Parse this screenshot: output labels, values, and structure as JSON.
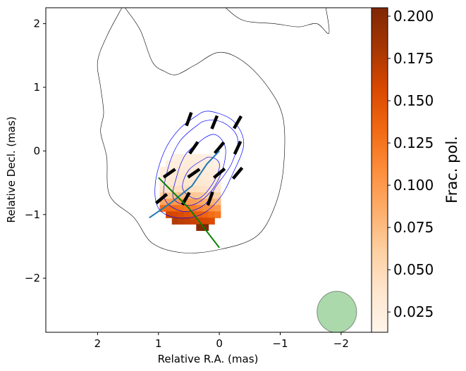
{
  "chart_data": {
    "type": "heatmap",
    "xlabel": "Relative R.A. (mas)",
    "ylabel": "Relative Decl. (mas)",
    "xlim": [
      2.85,
      -2.5
    ],
    "ylim": [
      -2.85,
      2.25
    ],
    "x_reversed": true,
    "x_ticks": [
      2,
      1,
      0,
      -1,
      -2
    ],
    "x_tick_labels": [
      "2",
      "1",
      "0",
      "−1",
      "−2"
    ],
    "y_ticks": [
      -2,
      -1,
      0,
      1,
      2
    ],
    "y_tick_labels": [
      "−2",
      "−1",
      "0",
      "1",
      "2"
    ],
    "grid": false,
    "colorbar": {
      "label": "Frac. pol.",
      "colormap": "Oranges",
      "range": [
        0.013,
        0.205
      ],
      "ticks": [
        0.025,
        0.05,
        0.075,
        0.1,
        0.125,
        0.15,
        0.175,
        0.2
      ],
      "tick_labels": [
        "0.025",
        "0.050",
        "0.075",
        "0.100",
        "0.125",
        "0.150",
        "0.175",
        "0.200"
      ]
    },
    "pixel_size_mas": 0.1,
    "frac_pol_rows": [
      {
        "y": -0.1,
        "x_start": 0.78,
        "values": [
          0.02,
          0.022,
          0.024,
          0.025,
          0.024,
          0.022,
          0.02
        ]
      },
      {
        "y": -0.2,
        "x_start": 0.88,
        "values": [
          0.022,
          0.024,
          0.026,
          0.027,
          0.027,
          0.026,
          0.024,
          0.022,
          0.02
        ]
      },
      {
        "y": -0.3,
        "x_start": 0.98,
        "values": [
          0.024,
          0.026,
          0.028,
          0.03,
          0.03,
          0.029,
          0.028,
          0.026,
          0.024,
          0.022
        ]
      },
      {
        "y": -0.4,
        "x_start": 0.98,
        "values": [
          0.026,
          0.028,
          0.03,
          0.032,
          0.032,
          0.031,
          0.03,
          0.028,
          0.026,
          0.024
        ]
      },
      {
        "y": -0.5,
        "x_start": 0.98,
        "values": [
          0.03,
          0.032,
          0.034,
          0.036,
          0.036,
          0.035,
          0.034,
          0.032,
          0.03,
          0.028
        ]
      },
      {
        "y": -0.6,
        "x_start": 0.98,
        "values": [
          0.04,
          0.042,
          0.044,
          0.045,
          0.045,
          0.044,
          0.043,
          0.04,
          0.038,
          0.035
        ]
      },
      {
        "y": -0.7,
        "x_start": 0.98,
        "values": [
          0.06,
          0.065,
          0.07,
          0.072,
          0.07,
          0.068,
          0.065,
          0.06,
          0.058,
          0.055
        ]
      },
      {
        "y": -0.8,
        "x_start": 0.98,
        "values": [
          0.09,
          0.095,
          0.1,
          0.1,
          0.098,
          0.095,
          0.09,
          0.085,
          0.08,
          0.075
        ]
      },
      {
        "y": -0.9,
        "x_start": 0.98,
        "values": [
          0.13,
          0.132,
          0.13,
          0.128,
          0.125,
          0.12,
          0.115,
          0.11,
          0.105,
          0.1
        ]
      },
      {
        "y": -1.0,
        "x_start": 0.88,
        "values": [
          0.16,
          0.158,
          0.155,
          0.15,
          0.145,
          0.14,
          0.135,
          0.13,
          0.125
        ]
      },
      {
        "y": -1.1,
        "x_start": 0.78,
        "values": [
          0.175,
          0.17,
          0.168,
          0.165,
          0.16,
          0.158,
          0.155
        ]
      },
      {
        "y": -1.2,
        "x_start": 0.38,
        "values": [
          0.2,
          0.205
        ]
      }
    ],
    "contours": [
      {
        "name": "outer",
        "color": "#000000",
        "points": [
          [
            1.55,
            2.25
          ],
          [
            1.3,
            1.9
          ],
          [
            1.1,
            1.4
          ],
          [
            0.9,
            1.25
          ],
          [
            0.7,
            1.2
          ],
          [
            0.4,
            1.35
          ],
          [
            0.0,
            1.55
          ],
          [
            -0.4,
            1.4
          ],
          [
            -0.8,
            1.0
          ],
          [
            -1.05,
            0.5
          ],
          [
            -1.05,
            -0.3
          ],
          [
            -0.9,
            -0.9
          ],
          [
            -0.6,
            -1.35
          ],
          [
            0.0,
            -1.55
          ],
          [
            0.6,
            -1.6
          ],
          [
            1.1,
            -1.45
          ],
          [
            1.4,
            -1.05
          ],
          [
            1.8,
            -0.7
          ],
          [
            1.85,
            -0.1
          ],
          [
            1.95,
            0.3
          ],
          [
            1.9,
            0.6
          ],
          [
            1.95,
            1.0
          ],
          [
            2.0,
            1.4
          ],
          [
            1.85,
            1.8
          ],
          [
            1.6,
            2.25
          ]
        ]
      },
      {
        "name": "outer-right",
        "color": "#000000",
        "points": [
          [
            -0.1,
            2.25
          ],
          [
            -0.4,
            2.05
          ],
          [
            -0.9,
            2.0
          ],
          [
            -1.3,
            1.95
          ],
          [
            -1.6,
            2.0
          ],
          [
            -1.8,
            1.85
          ],
          [
            -1.75,
            2.25
          ]
        ]
      },
      {
        "name": "inner-1",
        "color": "#0000ff",
        "points": [
          [
            0.3,
            0.6
          ],
          [
            0.65,
            0.35
          ],
          [
            0.9,
            0.0
          ],
          [
            1.05,
            -0.5
          ],
          [
            1.0,
            -0.9
          ],
          [
            0.7,
            -1.05
          ],
          [
            0.3,
            -1.0
          ],
          [
            0.0,
            -0.75
          ],
          [
            -0.2,
            -0.4
          ],
          [
            -0.4,
            0.1
          ],
          [
            -0.25,
            0.45
          ],
          [
            0.05,
            0.6
          ]
        ]
      },
      {
        "name": "inner-2",
        "color": "#0000ff",
        "points": [
          [
            0.3,
            0.45
          ],
          [
            0.65,
            0.15
          ],
          [
            0.85,
            -0.3
          ],
          [
            0.9,
            -0.75
          ],
          [
            0.6,
            -0.95
          ],
          [
            0.25,
            -0.85
          ],
          [
            0.05,
            -0.55
          ],
          [
            -0.2,
            -0.2
          ],
          [
            -0.3,
            0.2
          ],
          [
            -0.05,
            0.45
          ]
        ]
      },
      {
        "name": "inner-3",
        "color": "#0000ff",
        "points": [
          [
            0.25,
            0.2
          ],
          [
            0.55,
            -0.05
          ],
          [
            0.7,
            -0.4
          ],
          [
            0.75,
            -0.75
          ],
          [
            0.45,
            -0.85
          ],
          [
            0.15,
            -0.65
          ],
          [
            -0.05,
            -0.3
          ],
          [
            -0.1,
            0.05
          ],
          [
            0.05,
            0.25
          ]
        ]
      },
      {
        "name": "inner-4",
        "color": "#0000ff",
        "points": [
          [
            0.2,
            -0.1
          ],
          [
            0.5,
            -0.3
          ],
          [
            0.6,
            -0.6
          ],
          [
            0.35,
            -0.75
          ],
          [
            0.1,
            -0.5
          ],
          [
            0.0,
            -0.2
          ]
        ]
      }
    ],
    "evpa_sticks": [
      {
        "x": 0.5,
        "y": 0.5,
        "angle": 70
      },
      {
        "x": 0.08,
        "y": 0.45,
        "angle": 68
      },
      {
        "x": -0.3,
        "y": 0.45,
        "angle": 60
      },
      {
        "x": 0.42,
        "y": 0.05,
        "angle": 55
      },
      {
        "x": 0.0,
        "y": 0.05,
        "angle": 50
      },
      {
        "x": -0.3,
        "y": 0.05,
        "angle": 65
      },
      {
        "x": 0.82,
        "y": -0.35,
        "angle": 35
      },
      {
        "x": 0.42,
        "y": -0.35,
        "angle": 35
      },
      {
        "x": 0.0,
        "y": -0.35,
        "angle": 40
      },
      {
        "x": -0.3,
        "y": -0.35,
        "angle": 50
      },
      {
        "x": 0.95,
        "y": -0.75,
        "angle": 40
      },
      {
        "x": 0.55,
        "y": -0.75,
        "angle": 60
      },
      {
        "x": 0.15,
        "y": -0.75,
        "angle": 70
      }
    ],
    "lines": [
      {
        "name": "jet-axis",
        "color": "#1f77b4",
        "points": [
          [
            1.15,
            -1.05
          ],
          [
            0.8,
            -0.82
          ],
          [
            0.45,
            -0.55
          ],
          [
            0.2,
            -0.2
          ],
          [
            0.0,
            0.0
          ]
        ]
      },
      {
        "name": "perpendicular",
        "color": "#008000",
        "points": [
          [
            1.0,
            -0.42
          ],
          [
            0.5,
            -0.9
          ],
          [
            0.0,
            -1.52
          ]
        ]
      }
    ],
    "beam": {
      "x": -1.93,
      "y": -2.53,
      "diameter_mas": 0.65,
      "color": "#2ca02c"
    }
  }
}
